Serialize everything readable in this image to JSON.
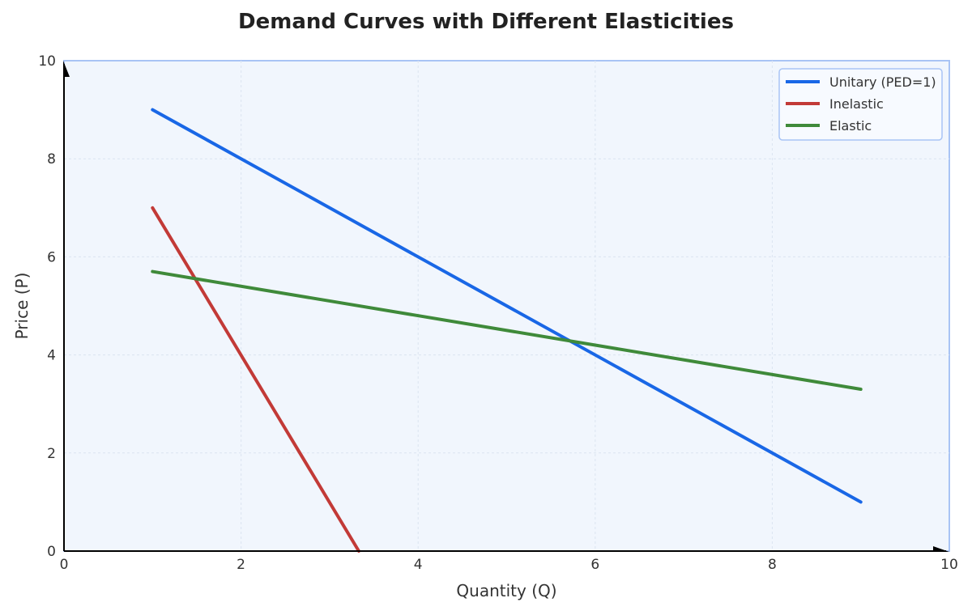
{
  "chart_data": {
    "type": "line",
    "title": "Demand Curves with Different Elasticities",
    "xlabel": "Quantity (Q)",
    "ylabel": "Price (P)",
    "xlim": [
      0,
      10
    ],
    "ylim": [
      0,
      10
    ],
    "xticks": [
      0,
      2,
      4,
      6,
      8,
      10
    ],
    "yticks": [
      0,
      2,
      4,
      6,
      8,
      10
    ],
    "grid": true,
    "legend_position": "top-right",
    "background_color": "#f1f6fd",
    "frame_color": "#a9c4f5",
    "series": [
      {
        "name": "Unitary (PED=1)",
        "color": "#1967e6",
        "x": [
          1,
          9
        ],
        "y": [
          9,
          1
        ]
      },
      {
        "name": "Inelastic",
        "color": "#c23a37",
        "x": [
          1,
          3.33
        ],
        "y": [
          7,
          0
        ]
      },
      {
        "name": "Elastic",
        "color": "#3f8a3a",
        "x": [
          1,
          9
        ],
        "y": [
          5.7,
          3.3
        ]
      }
    ]
  }
}
